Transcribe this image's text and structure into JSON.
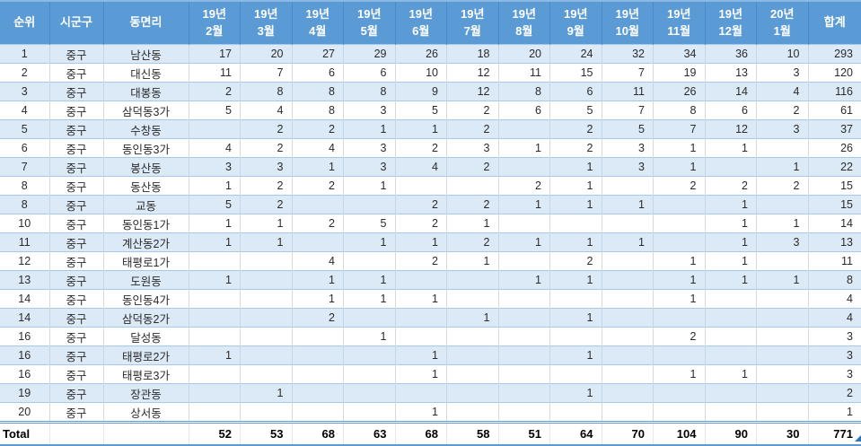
{
  "table": {
    "columns": [
      {
        "key": "rank",
        "label": "순위"
      },
      {
        "key": "district",
        "label": "시군구"
      },
      {
        "key": "neighborhood",
        "label": "동면리"
      },
      {
        "key": "m-19-02",
        "line1": "19년",
        "line2": "2월"
      },
      {
        "key": "m-19-03",
        "line1": "19년",
        "line2": "3월"
      },
      {
        "key": "m-19-04",
        "line1": "19년",
        "line2": "4월"
      },
      {
        "key": "m-19-05",
        "line1": "19년",
        "line2": "5월"
      },
      {
        "key": "m-19-06",
        "line1": "19년",
        "line2": "6월"
      },
      {
        "key": "m-19-07",
        "line1": "19년",
        "line2": "7월"
      },
      {
        "key": "m-19-08",
        "line1": "19년",
        "line2": "8월"
      },
      {
        "key": "m-19-09",
        "line1": "19년",
        "line2": "9월"
      },
      {
        "key": "m-19-10",
        "line1": "19년",
        "line2": "10월"
      },
      {
        "key": "m-19-11",
        "line1": "19년",
        "line2": "11월"
      },
      {
        "key": "m-19-12",
        "line1": "19년",
        "line2": "12월"
      },
      {
        "key": "m-20-01",
        "line1": "20년",
        "line2": "1월"
      },
      {
        "key": "sum",
        "label": "합계"
      }
    ],
    "rows": [
      {
        "rank": "1",
        "district": "중구",
        "neighborhood": "남산동",
        "values": [
          "17",
          "20",
          "27",
          "29",
          "26",
          "18",
          "20",
          "24",
          "32",
          "34",
          "36",
          "10"
        ],
        "total": "293"
      },
      {
        "rank": "2",
        "district": "중구",
        "neighborhood": "대신동",
        "values": [
          "11",
          "7",
          "6",
          "6",
          "10",
          "12",
          "11",
          "15",
          "7",
          "19",
          "13",
          "3"
        ],
        "total": "120"
      },
      {
        "rank": "3",
        "district": "중구",
        "neighborhood": "대봉동",
        "values": [
          "2",
          "8",
          "8",
          "8",
          "9",
          "12",
          "8",
          "6",
          "11",
          "26",
          "14",
          "4"
        ],
        "total": "116"
      },
      {
        "rank": "4",
        "district": "중구",
        "neighborhood": "삼덕동3가",
        "values": [
          "5",
          "4",
          "8",
          "3",
          "5",
          "2",
          "6",
          "5",
          "7",
          "8",
          "6",
          "2"
        ],
        "total": "61"
      },
      {
        "rank": "5",
        "district": "중구",
        "neighborhood": "수창동",
        "values": [
          "",
          "2",
          "2",
          "1",
          "1",
          "2",
          "",
          "2",
          "5",
          "7",
          "12",
          "3"
        ],
        "total": "37"
      },
      {
        "rank": "6",
        "district": "중구",
        "neighborhood": "동인동3가",
        "values": [
          "4",
          "2",
          "4",
          "3",
          "2",
          "3",
          "1",
          "2",
          "3",
          "1",
          "1",
          ""
        ],
        "total": "26"
      },
      {
        "rank": "7",
        "district": "중구",
        "neighborhood": "봉산동",
        "values": [
          "3",
          "3",
          "1",
          "3",
          "4",
          "2",
          "",
          "1",
          "3",
          "1",
          "",
          "1"
        ],
        "total": "22"
      },
      {
        "rank": "8",
        "district": "중구",
        "neighborhood": "동산동",
        "values": [
          "1",
          "2",
          "2",
          "1",
          "",
          "",
          "2",
          "1",
          "",
          "2",
          "2",
          "2"
        ],
        "total": "15"
      },
      {
        "rank": "8",
        "district": "중구",
        "neighborhood": "교동",
        "values": [
          "5",
          "2",
          "",
          "",
          "2",
          "2",
          "1",
          "1",
          "1",
          "",
          "1",
          ""
        ],
        "total": "15"
      },
      {
        "rank": "10",
        "district": "중구",
        "neighborhood": "동인동1가",
        "values": [
          "1",
          "1",
          "2",
          "5",
          "2",
          "1",
          "",
          "",
          "",
          "",
          "1",
          "1"
        ],
        "total": "14"
      },
      {
        "rank": "11",
        "district": "중구",
        "neighborhood": "계산동2가",
        "values": [
          "1",
          "1",
          "",
          "1",
          "1",
          "2",
          "1",
          "1",
          "1",
          "",
          "1",
          "3"
        ],
        "total": "13"
      },
      {
        "rank": "12",
        "district": "중구",
        "neighborhood": "태평로1가",
        "values": [
          "",
          "",
          "4",
          "",
          "2",
          "1",
          "",
          "2",
          "",
          "1",
          "1",
          ""
        ],
        "total": "11"
      },
      {
        "rank": "13",
        "district": "중구",
        "neighborhood": "도원동",
        "values": [
          "1",
          "",
          "1",
          "1",
          "",
          "",
          "1",
          "1",
          "",
          "1",
          "1",
          "1"
        ],
        "total": "8"
      },
      {
        "rank": "14",
        "district": "중구",
        "neighborhood": "동인동4가",
        "values": [
          "",
          "",
          "1",
          "1",
          "1",
          "",
          "",
          "",
          "",
          "1",
          "",
          ""
        ],
        "total": "4"
      },
      {
        "rank": "14",
        "district": "중구",
        "neighborhood": "삼덕동2가",
        "values": [
          "",
          "",
          "2",
          "",
          "",
          "1",
          "",
          "1",
          "",
          "",
          "",
          ""
        ],
        "total": "4"
      },
      {
        "rank": "16",
        "district": "중구",
        "neighborhood": "달성동",
        "values": [
          "",
          "",
          "",
          "1",
          "",
          "",
          "",
          "",
          "",
          "2",
          "",
          ""
        ],
        "total": "3"
      },
      {
        "rank": "16",
        "district": "중구",
        "neighborhood": "태평로2가",
        "values": [
          "1",
          "",
          "",
          "",
          "1",
          "",
          "",
          "1",
          "",
          "",
          "",
          ""
        ],
        "total": "3"
      },
      {
        "rank": "16",
        "district": "중구",
        "neighborhood": "태평로3가",
        "values": [
          "",
          "",
          "",
          "",
          "1",
          "",
          "",
          "",
          "",
          "1",
          "1",
          ""
        ],
        "total": "3"
      },
      {
        "rank": "19",
        "district": "중구",
        "neighborhood": "장관동",
        "values": [
          "",
          "1",
          "",
          "",
          "",
          "",
          "",
          "1",
          "",
          "",
          "",
          ""
        ],
        "total": "2"
      },
      {
        "rank": "20",
        "district": "중구",
        "neighborhood": "상서동",
        "values": [
          "",
          "",
          "",
          "",
          "1",
          "",
          "",
          "",
          "",
          "",
          "",
          ""
        ],
        "total": "1"
      }
    ],
    "total_row": {
      "label": "Total",
      "values": [
        "52",
        "53",
        "68",
        "63",
        "68",
        "58",
        "51",
        "64",
        "70",
        "104",
        "90",
        "30"
      ],
      "total": "771"
    }
  },
  "icons": {
    "fill_handle": "selection-fill-handle"
  },
  "colors": {
    "header_bg": "#5B9BD5",
    "header_text": "#FFFFFF",
    "band_row_bg": "#DCE9F7",
    "row_bg": "#FFFFFF",
    "row_border": "#A5C9EA",
    "col_border": "#D9D9D9",
    "total_border": "#5B9BD5",
    "handle": "#2E75B6"
  }
}
